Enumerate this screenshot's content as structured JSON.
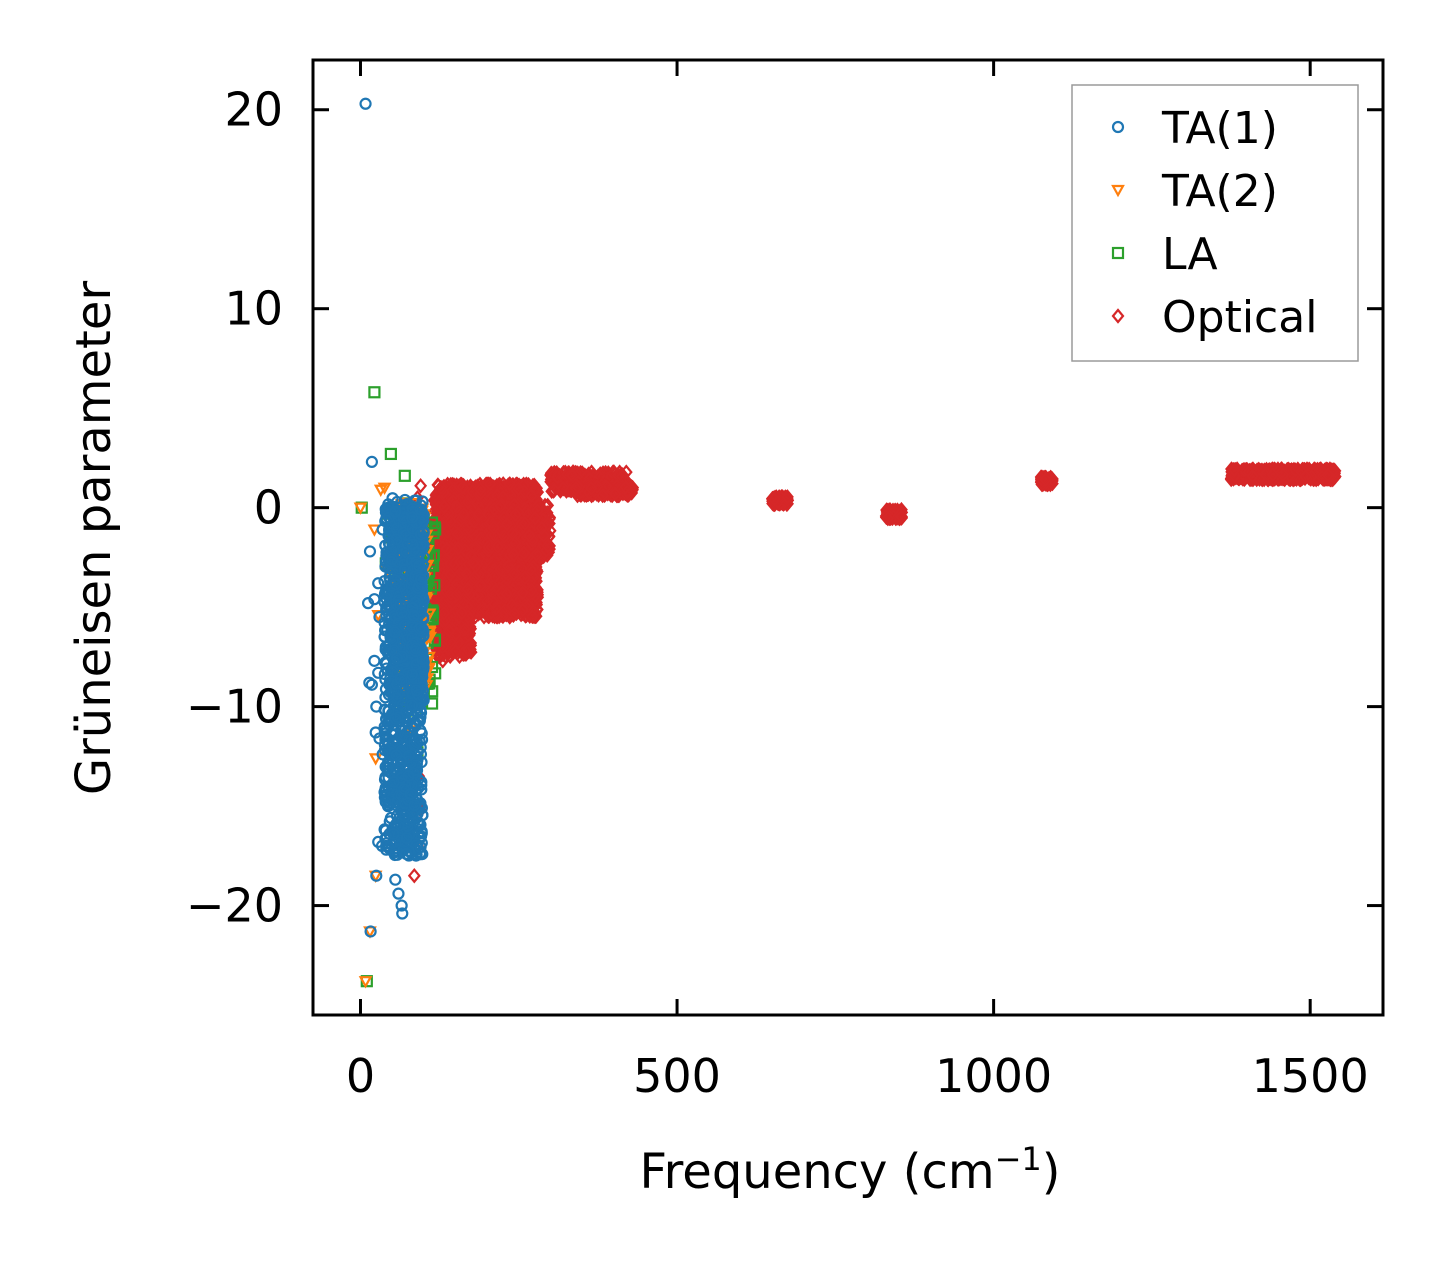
{
  "chart_data": {
    "type": "scatter",
    "title": "",
    "xlabel": "Frequency (cm",
    "xlabel_sup": "−1",
    "xlabel_end": ")",
    "ylabel": "Grüneisen parameter",
    "xlim": [
      -75,
      1615
    ],
    "ylim": [
      -25.5,
      22.5
    ],
    "xticks": [
      0,
      500,
      1000,
      1500
    ],
    "xtick_labels": [
      "0",
      "500",
      "1000",
      "1500"
    ],
    "yticks": [
      20,
      10,
      0,
      -10,
      -20
    ],
    "ytick_labels": [
      "20",
      "10",
      "0",
      "−10",
      "−20"
    ],
    "legend_position": "top-right",
    "series": [
      {
        "name": "TA(1)",
        "marker": "circle",
        "color": "#1f77b4",
        "points": [
          [
            8,
            20.3
          ],
          [
            18,
            2.3
          ],
          [
            15,
            -2.2
          ],
          [
            12,
            -4.8
          ],
          [
            22,
            -4.6
          ],
          [
            28,
            -3.8
          ],
          [
            35,
            -1.1
          ],
          [
            30,
            -5.5
          ],
          [
            14,
            -8.8
          ],
          [
            18,
            -8.9
          ],
          [
            22,
            -7.7
          ],
          [
            28,
            -8.3
          ],
          [
            25,
            -10.0
          ],
          [
            24,
            -11.3
          ],
          [
            30,
            -11.6
          ],
          [
            35,
            -12.4
          ],
          [
            38,
            -14.3
          ],
          [
            40,
            -14.8
          ],
          [
            28,
            -16.8
          ],
          [
            34,
            -17.0
          ],
          [
            25,
            -18.5
          ],
          [
            55,
            -18.7
          ],
          [
            60,
            -19.4
          ],
          [
            65,
            -20.0
          ],
          [
            66,
            -20.4
          ],
          [
            16,
            -21.3
          ],
          [
            60,
            -16.0
          ],
          [
            70,
            -15.5
          ],
          [
            72,
            -17.4
          ],
          [
            55,
            -0.2
          ],
          [
            45,
            -1.8
          ],
          [
            50,
            -2.6
          ],
          [
            40,
            -7.0
          ],
          [
            45,
            -9.4
          ],
          [
            42,
            -13.1
          ],
          [
            48,
            -15.6
          ],
          [
            52,
            -16.4
          ]
        ],
        "clusters": [
          {
            "x": [
              38,
              98
            ],
            "y": [
              -17.5,
              0.5
            ],
            "n": 900
          },
          {
            "x": [
              80,
              100
            ],
            "y": [
              -10,
              0
            ],
            "n": 200
          }
        ]
      },
      {
        "name": "TA(2)",
        "marker": "triangle-down",
        "color": "#ff7f0e",
        "points": [
          [
            0,
            0.0
          ],
          [
            22,
            -1.1
          ],
          [
            32,
            0.9
          ],
          [
            38,
            1.0
          ],
          [
            28,
            -5.4
          ],
          [
            24,
            -12.6
          ],
          [
            24,
            -18.5
          ],
          [
            15,
            -21.3
          ],
          [
            8,
            -23.8
          ],
          [
            45,
            -0.3
          ],
          [
            42,
            -3.1
          ],
          [
            60,
            -7.5
          ],
          [
            75,
            -9.5
          ],
          [
            100,
            -0.6
          ],
          [
            90,
            -2.4
          ],
          [
            110,
            -6.5
          ],
          [
            108,
            -8.1
          ],
          [
            80,
            -11.2
          ]
        ],
        "clusters": [
          {
            "x": [
              60,
              110
            ],
            "y": [
              -9,
              0.3
            ],
            "n": 170
          }
        ]
      },
      {
        "name": "LA",
        "marker": "square",
        "color": "#2ca02c",
        "points": [
          [
            22,
            5.8
          ],
          [
            48,
            2.7
          ],
          [
            70,
            1.6
          ],
          [
            2,
            0.0
          ],
          [
            44,
            -0.3
          ],
          [
            50,
            -1.5
          ],
          [
            40,
            -2.8
          ],
          [
            55,
            -4.5
          ],
          [
            100,
            -9.3
          ],
          [
            88,
            -10.2
          ],
          [
            95,
            -9.8
          ],
          [
            90,
            -12.3
          ],
          [
            10,
            -23.8
          ]
        ],
        "clusters": [
          {
            "x": [
              55,
              118
            ],
            "y": [
              -10,
              0.4
            ],
            "n": 170
          }
        ]
      },
      {
        "name": "Optical",
        "marker": "diamond",
        "color": "#d62728",
        "points": [
          [
            95,
            1.1
          ],
          [
            90,
            0.5
          ],
          [
            88,
            -0.5
          ],
          [
            100,
            -8.2
          ],
          [
            92,
            -13.5
          ],
          [
            88,
            -15.5
          ],
          [
            95,
            -15.2
          ],
          [
            90,
            -17.0
          ],
          [
            85,
            -18.5
          ],
          [
            80,
            -12.5
          ],
          [
            98,
            -6.5
          ],
          [
            105,
            -4.0
          ],
          [
            112,
            -1.5
          ],
          [
            120,
            -6.2
          ],
          [
            118,
            -3.3
          ],
          [
            160,
            -5.3
          ],
          [
            140,
            -6.2
          ],
          [
            130,
            -7.7
          ],
          [
            180,
            -3.5
          ],
          [
            190,
            -3.9
          ],
          [
            240,
            -1.3
          ],
          [
            270,
            0.6
          ],
          [
            260,
            -0.8
          ]
        ],
        "clusters": [
          {
            "x": [
              115,
              280
            ],
            "y": [
              -5.5,
              1.2
            ],
            "n": 2400
          },
          {
            "x": [
              120,
              175
            ],
            "y": [
              -7.5,
              -2.5
            ],
            "n": 500
          },
          {
            "x": [
              135,
              190
            ],
            "y": [
              -4.5,
              -2.0
            ],
            "n": 200
          },
          {
            "x": [
              200,
              300
            ],
            "y": [
              -2.5,
              0.2
            ],
            "n": 400
          },
          {
            "x": [
              300,
              420
            ],
            "y": [
              0.8,
              1.8
            ],
            "n": 320
          },
          {
            "x": [
              340,
              430
            ],
            "y": [
              0.6,
              1.1
            ],
            "n": 220
          },
          {
            "x": [
              650,
              675
            ],
            "y": [
              0.15,
              0.55
            ],
            "n": 80
          },
          {
            "x": [
              830,
              855
            ],
            "y": [
              -0.55,
              -0.1
            ],
            "n": 80
          },
          {
            "x": [
              1075,
              1093
            ],
            "y": [
              1.15,
              1.55
            ],
            "n": 70
          },
          {
            "x": [
              1375,
              1540
            ],
            "y": [
              1.4,
              1.95
            ],
            "n": 500
          }
        ]
      }
    ]
  }
}
